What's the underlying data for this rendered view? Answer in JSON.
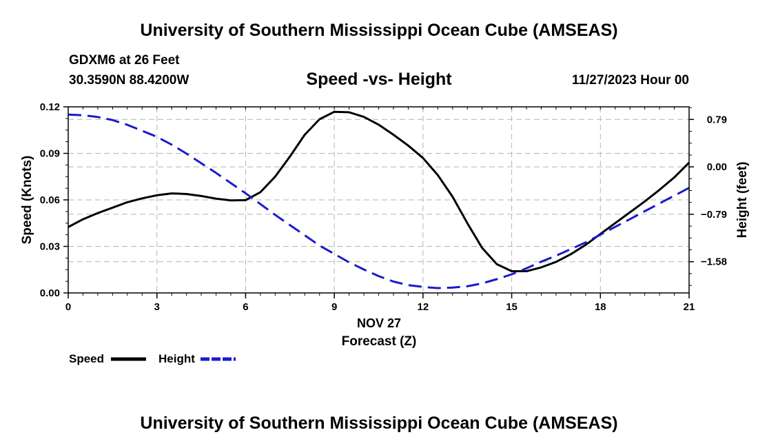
{
  "page": {
    "title_top": "University of Southern Mississippi Ocean Cube (AMSEAS)",
    "title_bottom": "University of Southern Mississippi Ocean Cube (AMSEAS)",
    "station": "GDXM6 at 26 Feet",
    "coordinates": "30.3590N  88.4200W",
    "subtitle": "Speed -vs- Height",
    "datetime": "11/27/2023 Hour 00"
  },
  "chart_data": {
    "type": "line",
    "title": "Speed -vs- Height",
    "xlabel": "Forecast (Z)",
    "xlabel_date": "NOV 27",
    "ylabel_left": "Speed (Knots)",
    "ylabel_right": "Height (feet)",
    "xlim": [
      0,
      21
    ],
    "ylim_left": [
      0,
      0.12
    ],
    "ylim_right": [
      -2.1,
      1.0
    ],
    "x_ticks": [
      0,
      3,
      6,
      9,
      12,
      15,
      18,
      21
    ],
    "x_tick_labels": [
      "0",
      "3",
      "6",
      "9",
      "12",
      "15",
      "18",
      "21"
    ],
    "y_left_ticks": [
      0,
      0.03,
      0.06,
      0.09,
      0.12
    ],
    "y_left_tick_labels": [
      "0.00",
      "0.03",
      "0.06",
      "0.09",
      "0.12"
    ],
    "y_right_ticks": [
      0.79,
      0.0,
      -0.79,
      -1.58
    ],
    "y_right_tick_labels": [
      "0.79",
      "0.00",
      "−0.79",
      "−1.58"
    ],
    "grid": true,
    "series": [
      {
        "name": "Speed",
        "axis": "left",
        "color": "#000000",
        "style": "solid",
        "x": [
          0,
          0.5,
          1,
          1.5,
          2,
          2.5,
          3,
          3.5,
          4,
          4.5,
          5,
          5.5,
          6,
          6.5,
          7,
          7.5,
          8,
          8.5,
          9,
          9.5,
          10,
          10.5,
          11,
          11.5,
          12,
          12.5,
          13,
          13.5,
          14,
          14.5,
          15,
          15.5,
          16,
          16.5,
          17,
          17.5,
          18,
          18.5,
          19,
          19.5,
          20,
          20.5,
          21
        ],
        "values": [
          0.0425,
          0.0475,
          0.0515,
          0.055,
          0.0585,
          0.061,
          0.063,
          0.0642,
          0.0638,
          0.0625,
          0.0608,
          0.0597,
          0.0598,
          0.065,
          0.075,
          0.088,
          0.102,
          0.112,
          0.1168,
          0.1165,
          0.1135,
          0.1085,
          0.102,
          0.095,
          0.087,
          0.076,
          0.062,
          0.045,
          0.029,
          0.0185,
          0.014,
          0.014,
          0.0165,
          0.02,
          0.025,
          0.031,
          0.038,
          0.045,
          0.052,
          0.059,
          0.0665,
          0.0745,
          0.084
        ]
      },
      {
        "name": "Height",
        "axis": "right",
        "color": "#1a1acc",
        "style": "dashed",
        "x": [
          0,
          0.5,
          1,
          1.5,
          2,
          2.5,
          3,
          3.5,
          4,
          4.5,
          5,
          5.5,
          6,
          6.5,
          7,
          7.5,
          8,
          8.5,
          9,
          9.5,
          10,
          10.5,
          11,
          11.5,
          12,
          12.5,
          13,
          13.5,
          14,
          14.5,
          15,
          15.5,
          16,
          16.5,
          17,
          17.5,
          18,
          18.5,
          19,
          19.5,
          20,
          20.5,
          21
        ],
        "values": [
          0.87,
          0.86,
          0.83,
          0.78,
          0.7,
          0.6,
          0.5,
          0.37,
          0.22,
          0.06,
          -0.1,
          -0.27,
          -0.44,
          -0.62,
          -0.8,
          -0.97,
          -1.14,
          -1.31,
          -1.45,
          -1.59,
          -1.71,
          -1.82,
          -1.91,
          -1.97,
          -2.0,
          -2.02,
          -2.01,
          -1.99,
          -1.94,
          -1.87,
          -1.79,
          -1.69,
          -1.58,
          -1.48,
          -1.37,
          -1.26,
          -1.13,
          -1.0,
          -0.87,
          -0.74,
          -0.61,
          -0.48,
          -0.35
        ]
      }
    ],
    "legend": {
      "placement": "bottom-left",
      "entries": [
        "Speed",
        "Height"
      ]
    }
  }
}
